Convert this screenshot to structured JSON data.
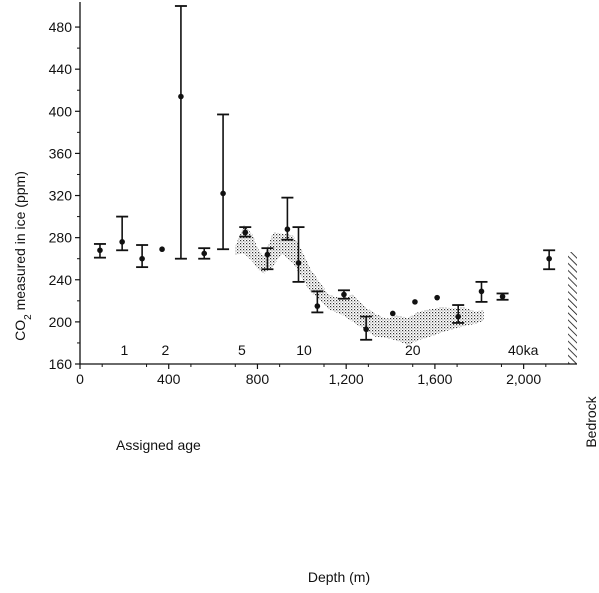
{
  "chart_data": {
    "type": "scatter",
    "xlabel": "Depth (m)",
    "ylabel_main": "CO",
    "ylabel_sub": "2",
    "ylabel_rest": " measured in ice (ppm)",
    "xlim": [
      0,
      2200
    ],
    "ylim": [
      160,
      500
    ],
    "x_ticks": [
      0,
      400,
      800,
      1200,
      1600,
      2000
    ],
    "x_tick_labels": [
      "0",
      "400",
      "800",
      "1,200",
      "1,600",
      "2,000"
    ],
    "y_ticks": [
      160,
      200,
      240,
      280,
      320,
      360,
      400,
      440,
      480
    ],
    "y_tick_labels": [
      "160",
      "200",
      "240",
      "280",
      "320",
      "360",
      "400",
      "440",
      "480"
    ],
    "annotation": "Assigned age",
    "bedrock_label": "Bedrock",
    "age_markers": [
      {
        "label": "1",
        "x": 200
      },
      {
        "label": "2",
        "x": 385
      },
      {
        "label": "5",
        "x": 730
      },
      {
        "label": "10",
        "x": 1010
      },
      {
        "label": "20",
        "x": 1500
      },
      {
        "label": "40ka",
        "x": 1998
      }
    ],
    "series": [
      {
        "points": [
          {
            "x": 90,
            "y": 268,
            "low": 261,
            "high": 274
          },
          {
            "x": 190,
            "y": 276,
            "low": 268,
            "high": 300
          },
          {
            "x": 280,
            "y": 260,
            "low": 252,
            "high": 273
          },
          {
            "x": 370,
            "y": 269
          },
          {
            "x": 455,
            "y": 414,
            "low": 260,
            "high": 500
          },
          {
            "x": 560,
            "y": 265,
            "low": 260,
            "high": 270
          },
          {
            "x": 645,
            "y": 322,
            "low": 269,
            "high": 397
          },
          {
            "x": 745,
            "y": 285,
            "low": 281,
            "high": 290
          },
          {
            "x": 845,
            "y": 264,
            "low": 250,
            "high": 270
          },
          {
            "x": 935,
            "y": 288,
            "low": 278,
            "high": 318
          },
          {
            "x": 985,
            "y": 256,
            "low": 238,
            "high": 290
          },
          {
            "x": 1070,
            "y": 215,
            "low": 209,
            "high": 229
          },
          {
            "x": 1190,
            "y": 226,
            "low": 222,
            "high": 230
          },
          {
            "x": 1290,
            "y": 193,
            "low": 183,
            "high": 205
          },
          {
            "x": 1410,
            "y": 208
          },
          {
            "x": 1510,
            "y": 219
          },
          {
            "x": 1610,
            "y": 223
          },
          {
            "x": 1705,
            "y": 205,
            "low": 199,
            "high": 216
          },
          {
            "x": 1810,
            "y": 229,
            "low": 219,
            "high": 238
          },
          {
            "x": 1905,
            "y": 224,
            "low": 221,
            "high": 227
          },
          {
            "x": 2115,
            "y": 260,
            "low": 250,
            "high": 268
          }
        ]
      }
    ],
    "shaded_band": [
      {
        "x": 700,
        "low": 264,
        "high": 272
      },
      {
        "x": 740,
        "low": 265,
        "high": 292
      },
      {
        "x": 780,
        "low": 257,
        "high": 282
      },
      {
        "x": 800,
        "low": 250,
        "high": 270
      },
      {
        "x": 830,
        "low": 246,
        "high": 262
      },
      {
        "x": 870,
        "low": 253,
        "high": 285
      },
      {
        "x": 910,
        "low": 265,
        "high": 284
      },
      {
        "x": 960,
        "low": 256,
        "high": 282
      },
      {
        "x": 1000,
        "low": 242,
        "high": 268
      },
      {
        "x": 1040,
        "low": 228,
        "high": 250
      },
      {
        "x": 1080,
        "low": 221,
        "high": 238
      },
      {
        "x": 1120,
        "low": 212,
        "high": 226
      },
      {
        "x": 1180,
        "low": 207,
        "high": 222
      },
      {
        "x": 1230,
        "low": 200,
        "high": 226
      },
      {
        "x": 1280,
        "low": 193,
        "high": 215
      },
      {
        "x": 1330,
        "low": 186,
        "high": 208
      },
      {
        "x": 1380,
        "low": 185,
        "high": 203
      },
      {
        "x": 1430,
        "low": 182,
        "high": 206
      },
      {
        "x": 1480,
        "low": 178,
        "high": 204
      },
      {
        "x": 1530,
        "low": 183,
        "high": 210
      },
      {
        "x": 1580,
        "low": 186,
        "high": 212
      },
      {
        "x": 1630,
        "low": 190,
        "high": 214
      },
      {
        "x": 1680,
        "low": 193,
        "high": 213
      },
      {
        "x": 1730,
        "low": 196,
        "high": 214
      },
      {
        "x": 1780,
        "low": 198,
        "high": 210
      },
      {
        "x": 1820,
        "low": 201,
        "high": 211
      }
    ]
  }
}
